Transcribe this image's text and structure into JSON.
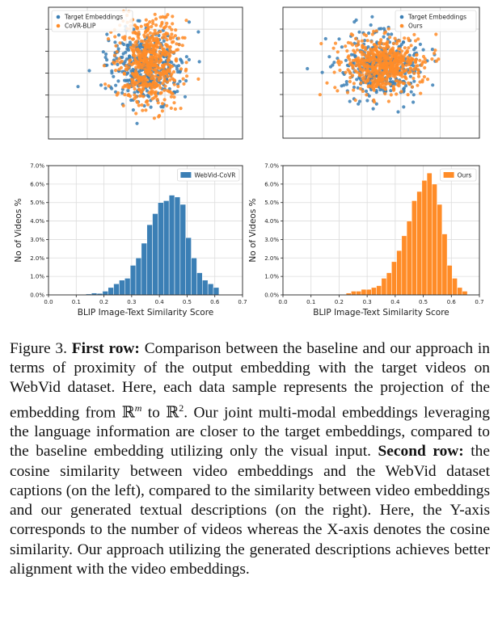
{
  "colors": {
    "blue": "#3b7fb5",
    "orange": "#ff8c28"
  },
  "chart_data": [
    {
      "type": "scatter",
      "legend": "top-left",
      "grid": true,
      "series": [
        {
          "name": "Target Embeddings",
          "color": "#3b7fb5",
          "center": [
            0.0,
            0.0
          ],
          "spread": [
            1.0,
            0.55
          ],
          "n": 380
        },
        {
          "name": "CoVR-BLIP",
          "color": "#ff8c28",
          "center": [
            0.1,
            -0.1
          ],
          "spread": [
            0.8,
            0.75
          ],
          "n": 560
        }
      ]
    },
    {
      "type": "scatter",
      "legend": "top-right",
      "grid": true,
      "series": [
        {
          "name": "Target Embeddings",
          "color": "#3b7fb5",
          "center": [
            0.0,
            0.0
          ],
          "spread": [
            1.0,
            0.5
          ],
          "n": 380
        },
        {
          "name": "Ours",
          "color": "#ff8c28",
          "center": [
            0.05,
            -0.02
          ],
          "spread": [
            0.95,
            0.45
          ],
          "n": 560
        }
      ]
    },
    {
      "type": "bar",
      "legend": "top-right",
      "grid": true,
      "xlabel": "BLIP Image-Text Similarity Score",
      "ylabel": "No of Videos %",
      "xlim": [
        0,
        0.7
      ],
      "ylim": [
        0,
        7.0
      ],
      "xticks": [
        "0.0",
        "0.1",
        "0.2",
        "0.3",
        "0.4",
        "0.5",
        "0.6",
        "0.7"
      ],
      "yticks": [
        "0.0%",
        "1.0%",
        "2.0%",
        "3.0%",
        "4.0%",
        "5.0%",
        "6.0%",
        "7.0%"
      ],
      "series": [
        {
          "name": "WebVid-CoVR",
          "color": "#3b7fb5",
          "bin_start": 0.135,
          "bin_width": 0.02,
          "values": [
            0.05,
            0.1,
            0.08,
            0.2,
            0.4,
            0.6,
            0.8,
            0.9,
            1.6,
            2.0,
            2.8,
            3.8,
            4.4,
            5.0,
            5.1,
            5.4,
            5.3,
            4.9,
            3.1,
            2.0,
            1.2,
            0.8,
            0.6,
            0.4
          ]
        }
      ]
    },
    {
      "type": "bar",
      "legend": "top-right",
      "grid": true,
      "xlabel": "BLIP Image-Text Similarity Score",
      "ylabel": "No of Videos %",
      "xlim": [
        0,
        0.7
      ],
      "ylim": [
        0,
        7.0
      ],
      "xticks": [
        "0.0",
        "0.1",
        "0.2",
        "0.3",
        "0.4",
        "0.5",
        "0.6",
        "0.7"
      ],
      "yticks": [
        "0.0%",
        "1.0%",
        "2.0%",
        "3.0%",
        "4.0%",
        "5.0%",
        "6.0%",
        "7.0%"
      ],
      "series": [
        {
          "name": "Ours",
          "color": "#ff8c28",
          "bin_start": 0.225,
          "bin_width": 0.018,
          "values": [
            0.1,
            0.2,
            0.2,
            0.3,
            0.3,
            0.4,
            0.5,
            0.9,
            1.2,
            1.8,
            2.4,
            3.2,
            4.0,
            5.1,
            5.6,
            6.2,
            6.6,
            6.0,
            4.9,
            3.3,
            1.6,
            0.9,
            0.4,
            0.2
          ]
        }
      ]
    }
  ],
  "caption": {
    "fig_label": "Figure 3.",
    "row1_head": "First row:",
    "row1_text_a": "Comparison between the baseline and our approach in terms of proximity of the output embedding with the target videos on WebVid dataset. Here, each data sample represents the projection of the embedding from ",
    "rm_base": "ℝ",
    "rm_exp": "m",
    "to_word": "to",
    "r2_base": "ℝ",
    "r2_exp": "2",
    "row1_text_b": ". Our joint multi-modal embeddings leveraging the language information are closer to the target embeddings, compared to the baseline embedding utilizing only the visual input.",
    "row2_head": "Second row:",
    "row2_text": "the cosine similarity between video embeddings and the WebVid dataset captions (on the left), compared to the similarity between video embeddings and our generated textual descriptions (on the right). Here, the Y-axis corresponds to the number of videos whereas the X-axis denotes the cosine similarity. Our approach utilizing the generated descriptions achieves better alignment with the video embeddings."
  }
}
